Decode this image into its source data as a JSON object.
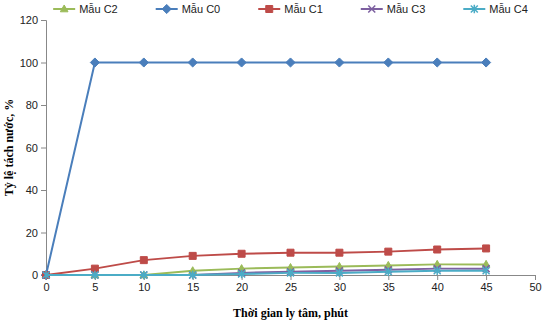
{
  "chart_data": {
    "type": "line",
    "x_label": "Thời gian ly tâm, phút",
    "y_label": "Tỷ lệ tách nước, %",
    "x": [
      0,
      5,
      10,
      15,
      20,
      25,
      30,
      35,
      40,
      45
    ],
    "series": [
      {
        "name": "Mẫu C2",
        "color": "#9bbb59",
        "marker": "triangle",
        "values": [
          0,
          0,
          0,
          2,
          3,
          3.5,
          4,
          4.5,
          5,
          5
        ]
      },
      {
        "name": "Mẫu C0",
        "color": "#4a7ebb",
        "marker": "diamond",
        "values": [
          0,
          100,
          100,
          100,
          100,
          100,
          100,
          100,
          100,
          100
        ]
      },
      {
        "name": "Mẫu C1",
        "color": "#be4b48",
        "marker": "square",
        "values": [
          0,
          3,
          7,
          9,
          10,
          10.5,
          10.5,
          11,
          12,
          12.5
        ]
      },
      {
        "name": "Mẫu C3",
        "color": "#7d60a0",
        "marker": "x",
        "values": [
          0,
          0,
          0,
          0,
          1,
          1.5,
          2,
          2.5,
          3,
          3
        ]
      },
      {
        "name": "Mẫu C4",
        "color": "#4bacc6",
        "marker": "star",
        "values": [
          0,
          0,
          0,
          0,
          0.5,
          1,
          1,
          1.5,
          2,
          2
        ]
      }
    ],
    "xlim": [
      0,
      50
    ],
    "xticks": [
      0,
      5,
      10,
      15,
      20,
      25,
      30,
      35,
      40,
      45,
      50
    ],
    "ylim": [
      0,
      120
    ],
    "yticks": [
      0,
      20,
      40,
      60,
      80,
      100,
      120
    ],
    "grid": false,
    "legend": "top"
  }
}
